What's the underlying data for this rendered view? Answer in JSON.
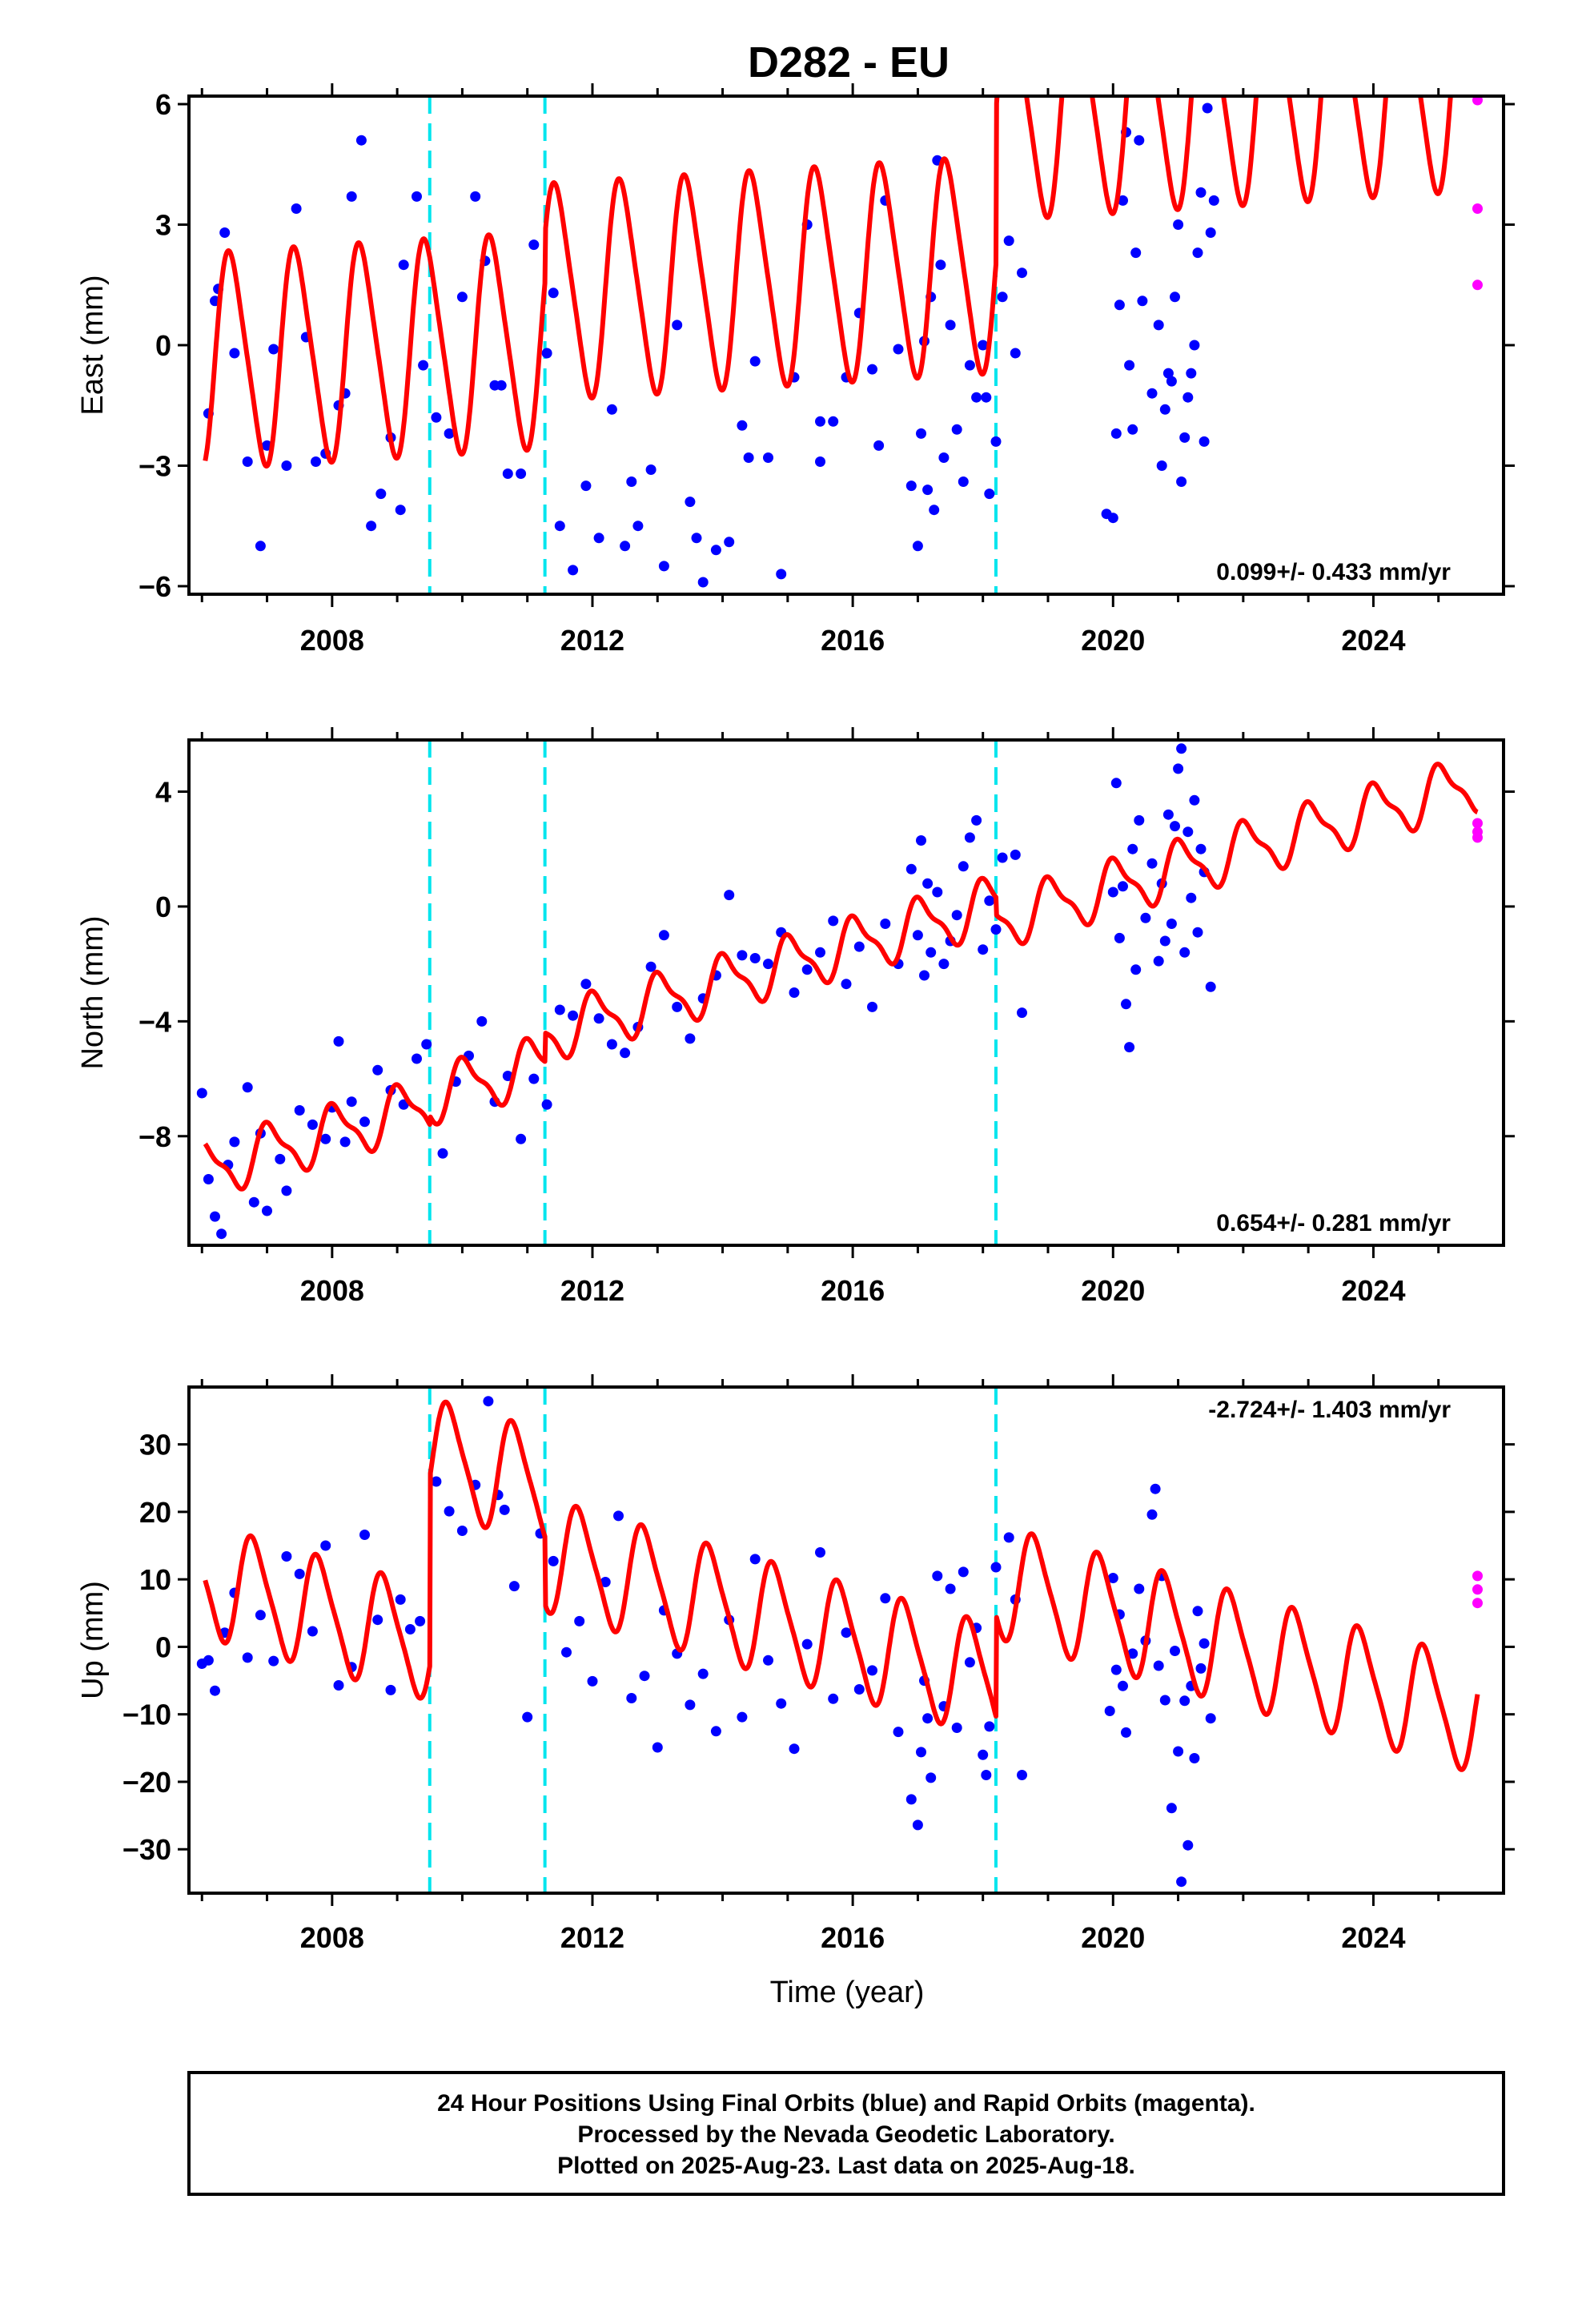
{
  "title": "D282 - EU",
  "colors": {
    "final_orbits": "#0000ff",
    "rapid_orbits": "#ff00ff",
    "model": "#ff0000",
    "offsets": "#00e5ee",
    "frame": "#000000"
  },
  "x_axis": {
    "label": "Time (year)",
    "range": [
      2005.8,
      2026.0
    ],
    "ticks": [
      "2008",
      "2012",
      "2016",
      "2020",
      "2024"
    ],
    "offsets": [
      2009.5,
      2011.27,
      2018.2
    ]
  },
  "footer": {
    "line1": "24 Hour Positions Using Final Orbits (blue) and Rapid Orbits (magenta).",
    "line2": "Processed by the Nevada Geodetic Laboratory.",
    "line3": "Plotted on 2025-Aug-23. Last data on 2025-Aug-18."
  },
  "chart_data": [
    {
      "type": "scatter",
      "ylabel": "East (mm)",
      "ylim": [
        -6.2,
        6.2
      ],
      "yticks": [
        "6",
        "3",
        "0",
        "−3",
        "−6"
      ],
      "rate": "0.099+/- 0.433 mm/yr",
      "model": {
        "rate": 0.099,
        "amp1": 2.6,
        "amp2": 0.4,
        "phase": 0.2,
        "intercept": -0.4,
        "steps": [
          [
            2009.5,
            0.0
          ],
          [
            2011.27,
            1.2
          ],
          [
            2018.2,
            3.8
          ]
        ]
      },
      "series": {
        "final_x": [
          2006.1,
          2006.2,
          2006.35,
          2006.5,
          2006.7,
          2006.9,
          2007.1,
          2007.3,
          2007.45,
          2007.6,
          2007.75,
          2007.9,
          2008.1,
          2008.3,
          2008.45,
          2008.6,
          2008.75,
          2008.9,
          2009.1,
          2009.3,
          2009.4,
          2009.6,
          2009.8,
          2010.0,
          2010.2,
          2010.35,
          2010.5,
          2010.7,
          2010.9,
          2011.1,
          2011.3,
          2011.5,
          2011.7,
          2011.9,
          2012.1,
          2012.3,
          2012.5,
          2012.7,
          2012.9,
          2013.1,
          2013.3,
          2013.5,
          2013.7,
          2013.9,
          2014.1,
          2014.3,
          2014.5,
          2014.7,
          2014.9,
          2015.1,
          2015.3,
          2015.5,
          2015.7,
          2015.9,
          2016.1,
          2016.3,
          2016.5,
          2016.7,
          2016.9,
          2017.0,
          2017.05,
          2017.1,
          2017.15,
          2017.2,
          2017.25,
          2017.3,
          2017.4,
          2017.5,
          2017.6,
          2017.7,
          2017.8,
          2017.9,
          2018.0,
          2018.1,
          2018.2,
          2018.3,
          2018.4,
          2018.5,
          2018.6,
          2019.9,
          2020.0,
          2020.05,
          2020.1,
          2020.15,
          2020.2,
          2020.25,
          2020.3,
          2020.35,
          2020.4,
          2020.45,
          2020.6,
          2020.7,
          2020.75,
          2020.8,
          2020.85,
          2020.9,
          2020.95,
          2021.0,
          2021.05,
          2021.1,
          2021.15,
          2021.2,
          2021.25,
          2021.3,
          2021.35,
          2021.4,
          2021.45,
          2021.5,
          2021.55,
          2006.25,
          2007.0,
          2008.2,
          2009.05,
          2010.6,
          2011.4,
          2012.6,
          2013.6,
          2014.4,
          2015.5,
          2016.4,
          2017.35,
          2018.05
        ],
        "final_y": [
          -1.7,
          1.1,
          2.8,
          -0.2,
          -2.9,
          -5.0,
          -0.1,
          -3.0,
          3.4,
          0.2,
          -2.9,
          -2.7,
          -1.5,
          3.7,
          5.1,
          -4.5,
          -3.7,
          -2.3,
          2.0,
          3.7,
          -0.5,
          -1.8,
          -2.2,
          1.2,
          3.7,
          2.1,
          -1.0,
          -3.2,
          -3.2,
          2.5,
          -0.2,
          -4.5,
          -5.6,
          -3.5,
          -4.8,
          -1.6,
          -5.0,
          -4.5,
          -3.1,
          -5.5,
          0.5,
          -3.9,
          -5.9,
          -5.1,
          -4.9,
          -2.0,
          -0.4,
          -2.8,
          -5.7,
          -0.8,
          3.0,
          -2.9,
          -1.9,
          -0.8,
          0.8,
          -0.6,
          3.6,
          -0.1,
          -3.5,
          -5.0,
          -2.2,
          0.1,
          -3.6,
          1.2,
          -4.1,
          4.6,
          -2.8,
          0.5,
          -2.1,
          -3.4,
          -0.5,
          -1.3,
          0.0,
          -3.7,
          -2.4,
          1.2,
          2.6,
          -0.2,
          1.8,
          -4.2,
          -4.3,
          -2.2,
          1.0,
          3.6,
          5.3,
          -0.5,
          -2.1,
          2.3,
          5.1,
          1.1,
          -1.2,
          0.5,
          -3.0,
          -1.6,
          -0.7,
          -0.9,
          1.2,
          3.0,
          -3.4,
          -2.3,
          -1.3,
          -0.7,
          0.0,
          2.3,
          3.8,
          -2.4,
          5.9,
          2.8,
          3.6,
          1.4,
          -2.5,
          -1.2,
          -4.1,
          -1.0,
          1.3,
          -3.4,
          -4.8,
          -2.8,
          -1.9,
          -2.5,
          2.0,
          -1.3,
          -3.8
        ],
        "rapid_x": [
          2025.6,
          2025.6,
          2025.6
        ],
        "rapid_y": [
          6.1,
          3.4,
          1.5
        ]
      }
    },
    {
      "type": "scatter",
      "ylabel": "North (mm)",
      "ylim": [
        -11.8,
        5.8
      ],
      "yticks": [
        "4",
        "0",
        "−4",
        "−8"
      ],
      "rate": "0.654+/- 0.281 mm/yr",
      "model": {
        "rate": 0.654,
        "amp1": 0.9,
        "amp2": 0.3,
        "phase": 0.8,
        "intercept": -9.2,
        "steps": [
          [
            2009.5,
            0.3
          ],
          [
            2011.27,
            1.0
          ],
          [
            2018.2,
            -0.6
          ]
        ]
      },
      "series": {
        "final_x": [
          2006.0,
          2006.1,
          2006.2,
          2006.3,
          2006.4,
          2006.5,
          2006.7,
          2006.8,
          2006.9,
          2007.0,
          2007.2,
          2007.3,
          2007.5,
          2007.7,
          2007.9,
          2008.0,
          2008.1,
          2008.2,
          2008.3,
          2008.5,
          2008.7,
          2008.9,
          2009.1,
          2009.3,
          2009.45,
          2009.7,
          2009.9,
          2010.1,
          2010.3,
          2010.5,
          2010.7,
          2010.9,
          2011.1,
          2011.3,
          2011.5,
          2011.7,
          2011.9,
          2012.1,
          2012.3,
          2012.5,
          2012.7,
          2012.9,
          2013.1,
          2013.3,
          2013.5,
          2013.7,
          2013.9,
          2014.1,
          2014.3,
          2014.5,
          2014.7,
          2014.9,
          2015.1,
          2015.3,
          2015.5,
          2015.7,
          2015.9,
          2016.1,
          2016.3,
          2016.5,
          2016.7,
          2016.9,
          2017.0,
          2017.05,
          2017.1,
          2017.15,
          2017.2,
          2017.3,
          2017.4,
          2017.5,
          2017.6,
          2017.7,
          2017.8,
          2017.9,
          2018.0,
          2018.1,
          2018.2,
          2018.3,
          2018.5,
          2018.6,
          2020.0,
          2020.05,
          2020.1,
          2020.15,
          2020.2,
          2020.25,
          2020.3,
          2020.35,
          2020.4,
          2020.5,
          2020.6,
          2020.7,
          2020.75,
          2020.8,
          2020.85,
          2020.9,
          2020.95,
          2021.0,
          2021.05,
          2021.1,
          2021.15,
          2021.2,
          2021.25,
          2021.3,
          2021.35,
          2021.4,
          2021.5
        ],
        "final_y": [
          -6.5,
          -9.5,
          -10.8,
          -11.4,
          -9.0,
          -8.2,
          -6.3,
          -10.3,
          -7.9,
          -10.6,
          -8.8,
          -9.9,
          -7.1,
          -7.6,
          -8.1,
          -7.0,
          -4.7,
          -8.2,
          -6.8,
          -7.5,
          -5.7,
          -6.4,
          -6.9,
          -5.3,
          -4.8,
          -8.6,
          -6.1,
          -5.2,
          -4.0,
          -6.8,
          -5.9,
          -8.1,
          -6.0,
          -6.9,
          -3.6,
          -3.8,
          -2.7,
          -3.9,
          -4.8,
          -5.1,
          -4.2,
          -2.1,
          -1.0,
          -3.5,
          -4.6,
          -3.2,
          -2.4,
          0.4,
          -1.7,
          -1.8,
          -2.0,
          -0.9,
          -3.0,
          -2.2,
          -1.6,
          -0.5,
          -2.7,
          -1.4,
          -3.5,
          -0.6,
          -2.0,
          1.3,
          -1.0,
          2.3,
          -2.4,
          0.8,
          -1.6,
          0.5,
          -2.0,
          -1.2,
          -0.3,
          1.4,
          2.4,
          3.0,
          -1.5,
          0.2,
          -0.8,
          1.7,
          1.8,
          -3.7,
          0.5,
          4.3,
          -1.1,
          0.7,
          -3.4,
          -4.9,
          2.0,
          -2.2,
          3.0,
          -0.4,
          1.5,
          -1.9,
          0.8,
          -1.2,
          3.2,
          -0.6,
          2.8,
          4.8,
          5.5,
          -1.6,
          2.6,
          0.3,
          3.7,
          -0.9,
          2.0,
          1.2,
          -2.8
        ],
        "rapid_x": [
          2025.6,
          2025.6,
          2025.6
        ],
        "rapid_y": [
          2.9,
          2.6,
          2.4
        ]
      }
    },
    {
      "type": "scatter",
      "ylabel": "Up (mm)",
      "ylim": [
        -36.5,
        38.5
      ],
      "yticks": [
        "30",
        "20",
        "10",
        "0",
        "−10",
        "−20",
        "−30"
      ],
      "rate": "-2.724+/- 1.403 mm/yr",
      "model": {
        "rate": -2.724,
        "amp1": 8.0,
        "amp2": 1.5,
        "phase": 0.55,
        "intercept": 10.0,
        "steps": [
          [
            2009.5,
            28.0
          ],
          [
            2011.27,
            -10.0
          ],
          [
            2018.2,
            15.0
          ]
        ]
      },
      "series": {
        "final_x": [
          2006.0,
          2006.1,
          2006.2,
          2006.35,
          2006.5,
          2006.7,
          2006.9,
          2007.1,
          2007.3,
          2007.5,
          2007.7,
          2007.9,
          2008.1,
          2008.3,
          2008.5,
          2008.7,
          2008.9,
          2009.05,
          2009.2,
          2009.35,
          2009.6,
          2009.8,
          2010.0,
          2010.2,
          2010.4,
          2010.55,
          2010.65,
          2010.8,
          2011.0,
          2011.2,
          2011.4,
          2011.6,
          2011.8,
          2012.0,
          2012.2,
          2012.4,
          2012.6,
          2012.8,
          2013.0,
          2013.1,
          2013.3,
          2013.5,
          2013.7,
          2013.9,
          2014.1,
          2014.3,
          2014.5,
          2014.7,
          2014.9,
          2015.1,
          2015.3,
          2015.5,
          2015.7,
          2015.9,
          2016.1,
          2016.3,
          2016.5,
          2016.7,
          2016.9,
          2017.0,
          2017.05,
          2017.1,
          2017.15,
          2017.2,
          2017.3,
          2017.4,
          2017.5,
          2017.6,
          2017.7,
          2017.8,
          2017.9,
          2018.0,
          2018.05,
          2018.1,
          2018.2,
          2018.4,
          2018.5,
          2018.6,
          2019.95,
          2020.0,
          2020.05,
          2020.1,
          2020.15,
          2020.2,
          2020.3,
          2020.4,
          2020.5,
          2020.6,
          2020.65,
          2020.7,
          2020.75,
          2020.8,
          2020.9,
          2020.95,
          2021.0,
          2021.05,
          2021.1,
          2021.15,
          2021.2,
          2021.25,
          2021.3,
          2021.35,
          2021.4,
          2021.5
        ],
        "final_y": [
          -2.5,
          -2.0,
          -6.5,
          2.1,
          8.0,
          -1.6,
          4.7,
          -2.1,
          13.4,
          10.8,
          2.3,
          15.0,
          -5.7,
          -3.0,
          16.6,
          4.0,
          -6.4,
          7.0,
          2.6,
          3.8,
          24.5,
          20.1,
          17.2,
          24.0,
          36.4,
          22.5,
          20.3,
          9.0,
          -10.4,
          16.8,
          12.7,
          -0.8,
          3.8,
          -5.1,
          9.6,
          19.4,
          -7.6,
          -4.3,
          -14.9,
          5.4,
          -1.0,
          -8.6,
          -4.0,
          -12.5,
          4.0,
          -10.4,
          13.0,
          -2.0,
          -8.4,
          -15.1,
          0.4,
          14.0,
          -7.7,
          2.1,
          -6.3,
          -3.5,
          7.2,
          -12.6,
          -22.6,
          -26.4,
          -15.6,
          -5.0,
          -10.6,
          -19.4,
          10.5,
          -8.8,
          8.6,
          -12.0,
          11.1,
          -2.3,
          2.8,
          -16.0,
          -19.0,
          -11.8,
          11.8,
          16.2,
          7.0,
          -19.0,
          -9.5,
          10.2,
          -3.4,
          4.8,
          -5.8,
          -12.7,
          -1.0,
          8.6,
          0.9,
          19.6,
          23.4,
          -2.8,
          10.5,
          -7.9,
          -23.9,
          -0.6,
          -15.5,
          -34.8,
          -8.0,
          -29.4,
          -5.8,
          -16.5,
          5.3,
          -3.2,
          0.5,
          -10.6
        ],
        "rapid_x": [
          2025.6,
          2025.6,
          2025.6
        ],
        "rapid_y": [
          10.5,
          8.5,
          6.5
        ]
      }
    }
  ]
}
